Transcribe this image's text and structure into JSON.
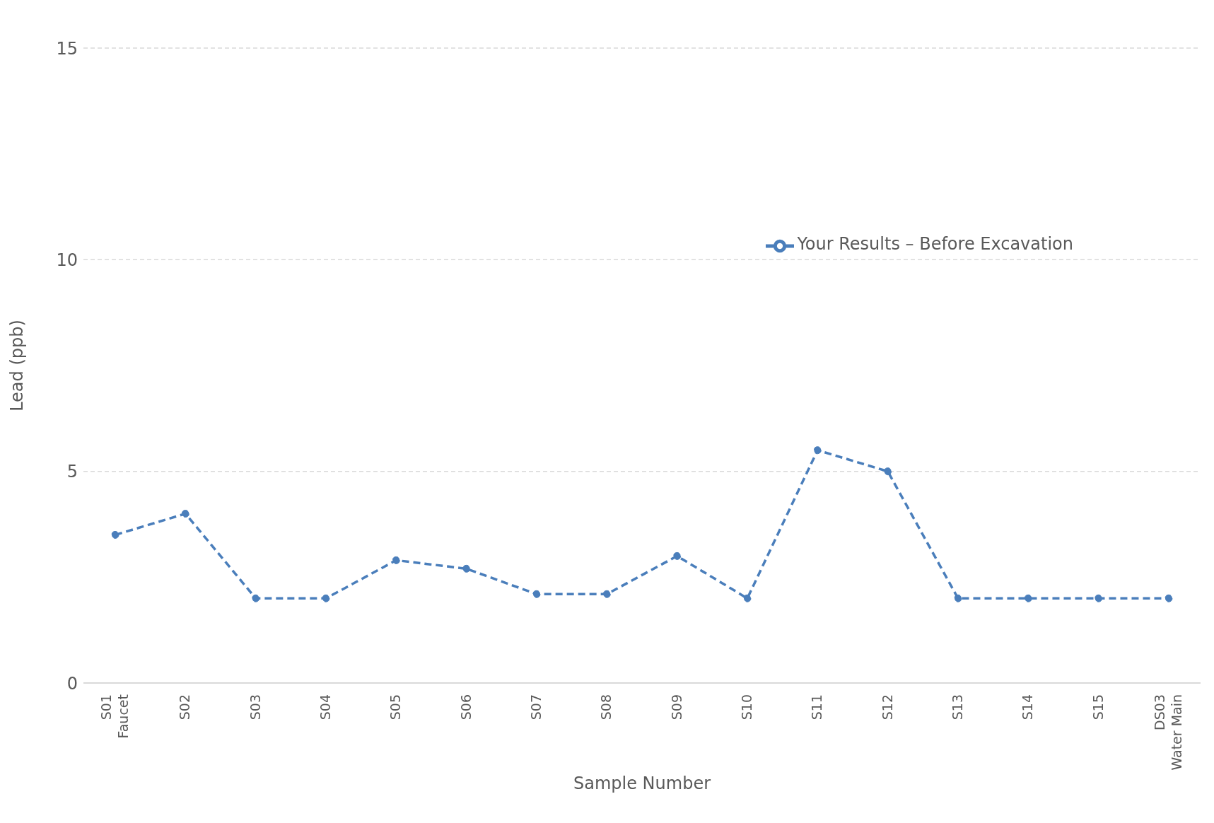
{
  "chart_data": {
    "type": "line",
    "xlabel": "Sample Number",
    "ylabel": "Lead (ppb)",
    "categories": [
      "S01\nFaucet",
      "S02",
      "S03",
      "S04",
      "S05",
      "S06",
      "S07",
      "S08",
      "S09",
      "S10",
      "S11",
      "S12",
      "S13",
      "S14",
      "S15",
      "DS03\nWater Main"
    ],
    "series": [
      {
        "name": "Your Results – Before Excavation",
        "color": "#4a7ebb",
        "values": [
          3.5,
          4.0,
          2.0,
          2.0,
          2.9,
          2.7,
          2.1,
          2.1,
          3.0,
          2.0,
          5.5,
          5.0,
          2.0,
          2.0,
          2.0,
          2.0
        ]
      }
    ],
    "ylim": [
      0,
      15
    ],
    "yticks": [
      0,
      5,
      10,
      15
    ],
    "grid": "y",
    "legend": "top right",
    "marker": "circle",
    "line_style": "dashed"
  }
}
